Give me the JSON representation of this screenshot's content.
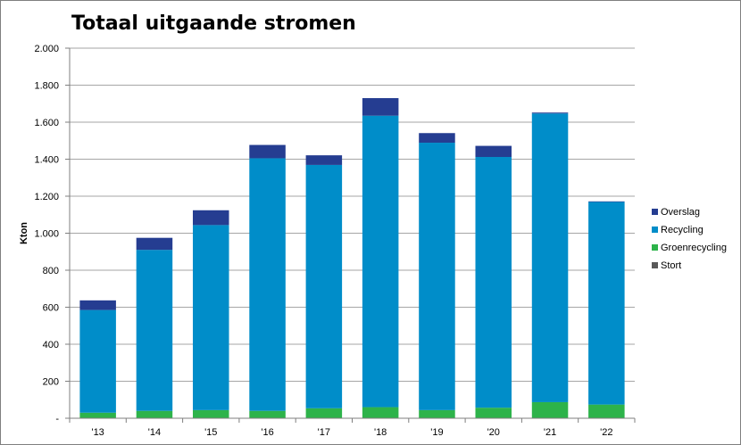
{
  "chart_data": {
    "type": "bar",
    "stacked": true,
    "title": "Totaal uitgaande stromen",
    "ylabel": "Kton",
    "xlabel": "",
    "ylim": [
      0,
      2000
    ],
    "y_ticks": [
      "-",
      "200",
      "400",
      "600",
      "800",
      "1.000",
      "1.200",
      "1.400",
      "1.600",
      "1.800",
      "2.000"
    ],
    "categories": [
      "'13",
      "'14",
      "'15",
      "'16",
      "'17",
      "'18",
      "'19",
      "'20",
      "'21",
      "'22"
    ],
    "series": [
      {
        "name": "Stort",
        "color": "#595959",
        "values": [
          2,
          2,
          2,
          2,
          2,
          2,
          2,
          2,
          2,
          2
        ]
      },
      {
        "name": "Groenrecycling",
        "color": "#2db34a",
        "values": [
          28,
          38,
          42,
          38,
          52,
          58,
          42,
          55,
          85,
          72
        ]
      },
      {
        "name": "Recycling",
        "color": "#008dc9",
        "values": [
          555,
          870,
          1000,
          1365,
          1315,
          1575,
          1445,
          1355,
          1560,
          1095
        ]
      },
      {
        "name": "Overslag",
        "color": "#253d91",
        "values": [
          52,
          65,
          80,
          72,
          52,
          95,
          52,
          60,
          5,
          3
        ]
      }
    ],
    "legend_order": [
      "Overslag",
      "Recycling",
      "Groenrecycling",
      "Stort"
    ],
    "legend_position": "right",
    "grid": true
  }
}
